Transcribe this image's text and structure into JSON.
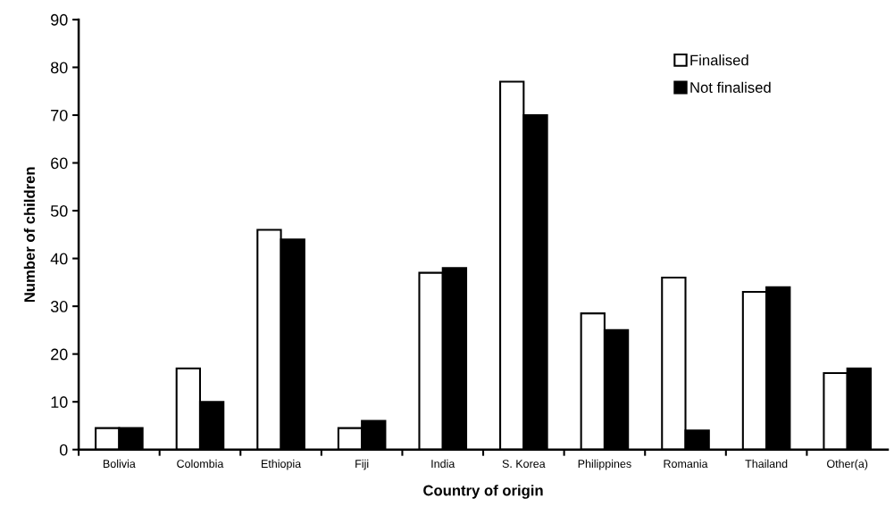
{
  "chart_data": {
    "type": "bar",
    "xlabel": "Country of origin",
    "ylabel": "Number of children",
    "categories": [
      "Bolivia",
      "Colombia",
      "Ethiopia",
      "Fiji",
      "India",
      "S. Korea",
      "Philippines",
      "Romania",
      "Thailand",
      "Other(a)"
    ],
    "series": [
      {
        "name": "Finalised",
        "color": "#ffffff",
        "values": [
          4.5,
          17,
          46,
          4.5,
          37,
          77,
          28.5,
          36,
          33,
          16
        ]
      },
      {
        "name": "Not finalised",
        "color": "#000000",
        "values": [
          4.5,
          10,
          44,
          6,
          38,
          70,
          25,
          4,
          34,
          17
        ]
      }
    ],
    "ylim": [
      0,
      90
    ],
    "yticks": [
      0,
      10,
      20,
      30,
      40,
      50,
      60,
      70,
      80,
      90
    ],
    "grid": false,
    "legend": "top right"
  }
}
